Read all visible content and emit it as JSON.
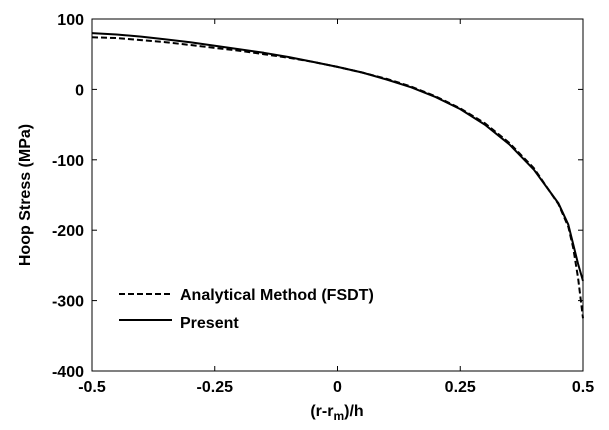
{
  "chart_data": {
    "type": "line",
    "title": "",
    "xlabel": "(r-r",
    "xlabel_sub": "m",
    "xlabel_tail": ")/h",
    "ylabel": "Hoop Stress (MPa)",
    "xlim": [
      -0.5,
      0.5
    ],
    "ylim": [
      -400,
      100
    ],
    "xticks": [
      -0.5,
      -0.25,
      0,
      0.25,
      0.5
    ],
    "xtick_labels": [
      "-0.5",
      "-0.25",
      "0",
      "0.25",
      "0.5"
    ],
    "yticks": [
      100,
      0,
      -100,
      -200,
      -300,
      -400
    ],
    "ytick_labels": [
      "100",
      "0",
      "-100",
      "-200",
      "-300",
      "-400"
    ],
    "grid": false,
    "legend_position": "bottom-left",
    "series": [
      {
        "name": "Analytical Method (FSDT)",
        "style": "dashed",
        "color": "#000000",
        "x": [
          -0.5,
          -0.45,
          -0.4,
          -0.35,
          -0.3,
          -0.25,
          -0.2,
          -0.15,
          -0.1,
          -0.05,
          0,
          0.05,
          0.1,
          0.15,
          0.2,
          0.25,
          0.3,
          0.35,
          0.4,
          0.45,
          0.47,
          0.48,
          0.49,
          0.5
        ],
        "y": [
          74,
          73,
          70,
          67,
          63,
          59,
          55,
          50,
          45,
          39,
          32,
          24,
          15,
          4,
          -10,
          -27,
          -48,
          -76,
          -112,
          -163,
          -195,
          -225,
          -268,
          -325
        ]
      },
      {
        "name": "Present",
        "style": "solid",
        "color": "#000000",
        "x": [
          -0.5,
          -0.45,
          -0.4,
          -0.35,
          -0.3,
          -0.25,
          -0.2,
          -0.15,
          -0.1,
          -0.05,
          0,
          0.05,
          0.1,
          0.15,
          0.2,
          0.25,
          0.3,
          0.35,
          0.4,
          0.45,
          0.47,
          0.48,
          0.49,
          0.5
        ],
        "y": [
          80,
          78,
          75,
          71,
          67,
          62,
          57,
          52,
          46,
          39,
          32,
          24,
          14,
          3,
          -11,
          -28,
          -50,
          -78,
          -114,
          -162,
          -192,
          -220,
          -248,
          -272
        ]
      }
    ]
  }
}
